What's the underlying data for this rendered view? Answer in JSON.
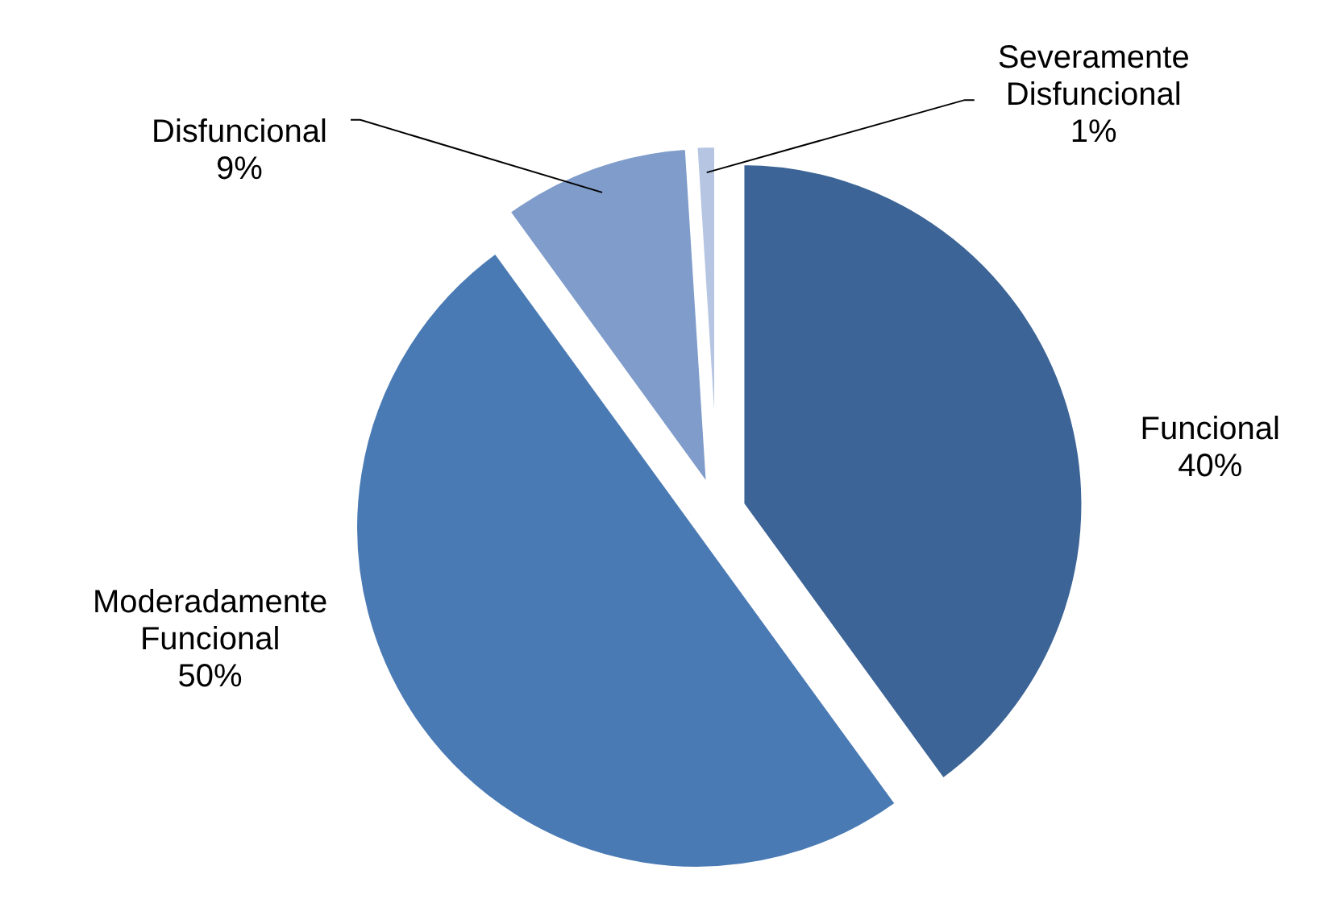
{
  "chart_data": {
    "type": "pie",
    "categories": [
      "Funcional",
      "Moderadamente Funcional",
      "Disfuncional",
      "Severamente Disfuncional"
    ],
    "values": [
      40,
      50,
      9,
      1
    ],
    "value_labels": [
      "40%",
      "50%",
      "9%",
      "1%"
    ],
    "colors": [
      "#3d6496",
      "#4a7ab4",
      "#7f9ccb",
      "#b5c5e2"
    ]
  }
}
